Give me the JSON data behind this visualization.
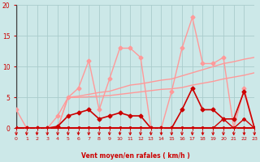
{
  "background_color": "#cce8e8",
  "grid_color": "#aacccc",
  "xlabel": "Vent moyen/en rafales ( km/h )",
  "xlim": [
    0,
    23
  ],
  "ylim": [
    0,
    20
  ],
  "xticks": [
    0,
    1,
    2,
    3,
    4,
    5,
    6,
    7,
    8,
    9,
    10,
    11,
    12,
    13,
    14,
    15,
    16,
    17,
    18,
    19,
    20,
    21,
    22,
    23
  ],
  "yticks": [
    0,
    5,
    10,
    15,
    20
  ],
  "series": [
    {
      "x": [
        0,
        1,
        2,
        3,
        4,
        5,
        6,
        7,
        8,
        9,
        10,
        11,
        12,
        13,
        14,
        15,
        16,
        17,
        18,
        19,
        20,
        21,
        22,
        23
      ],
      "y": [
        3,
        0,
        0,
        0,
        2,
        5,
        6.5,
        11,
        3,
        8,
        13,
        13,
        11.5,
        0,
        0,
        6,
        13,
        18,
        10.5,
        10.5,
        11.5,
        0,
        6.5,
        0
      ],
      "color": "#ff9999",
      "lw": 1.0,
      "marker": "D",
      "markersize": 2.5,
      "zorder": 3
    },
    {
      "x": [
        0,
        1,
        2,
        3,
        4,
        5,
        6,
        7,
        8,
        9,
        10,
        11,
        12,
        13,
        14,
        15,
        16,
        17,
        18,
        19,
        20,
        21,
        22,
        23
      ],
      "y": [
        0,
        0,
        0,
        0,
        0,
        5,
        5.2,
        5.5,
        5.8,
        6.0,
        6.5,
        7.0,
        7.2,
        7.5,
        7.8,
        8.0,
        8.5,
        9.0,
        9.5,
        10.0,
        10.5,
        10.8,
        11.2,
        11.5
      ],
      "color": "#ff9999",
      "lw": 1.0,
      "marker": null,
      "markersize": 0,
      "zorder": 2
    },
    {
      "x": [
        0,
        1,
        2,
        3,
        4,
        5,
        6,
        7,
        8,
        9,
        10,
        11,
        12,
        13,
        14,
        15,
        16,
        17,
        18,
        19,
        20,
        21,
        22,
        23
      ],
      "y": [
        0,
        0,
        0,
        0,
        0,
        5,
        5.0,
        5.1,
        5.2,
        5.3,
        5.5,
        5.7,
        5.9,
        6.1,
        6.3,
        6.4,
        6.6,
        7.0,
        7.3,
        7.6,
        8.0,
        8.3,
        8.6,
        9.0
      ],
      "color": "#ff9999",
      "lw": 1.0,
      "marker": null,
      "markersize": 0,
      "zorder": 2
    },
    {
      "x": [
        0,
        1,
        2,
        3,
        4,
        5,
        6,
        7,
        8,
        9,
        10,
        11,
        12,
        13,
        14,
        15,
        16,
        17,
        18,
        19,
        20,
        21,
        22,
        23
      ],
      "y": [
        0,
        0,
        0,
        0,
        0.3,
        2,
        2.5,
        3,
        1.5,
        2,
        2.5,
        2,
        2,
        0,
        0,
        0,
        3,
        6.5,
        3,
        3,
        1.5,
        1.5,
        6,
        0
      ],
      "color": "#cc0000",
      "lw": 1.2,
      "marker": "D",
      "markersize": 2.5,
      "zorder": 4
    },
    {
      "x": [
        0,
        1,
        2,
        3,
        4,
        5,
        6,
        7,
        8,
        9,
        10,
        11,
        12,
        13,
        14,
        15,
        16,
        17,
        18,
        19,
        20,
        21,
        22,
        23
      ],
      "y": [
        0,
        0,
        0,
        0,
        0,
        0,
        0,
        0,
        0,
        0,
        0,
        0,
        0,
        0,
        0,
        0,
        0,
        0,
        0,
        0,
        0,
        0,
        0,
        0
      ],
      "color": "#cc0000",
      "lw": 1.8,
      "marker": "D",
      "markersize": 2.0,
      "zorder": 4
    },
    {
      "x": [
        0,
        1,
        2,
        3,
        4,
        5,
        6,
        7,
        8,
        9,
        10,
        11,
        12,
        13,
        14,
        15,
        16,
        17,
        18,
        19,
        20,
        21,
        22,
        23
      ],
      "y": [
        0,
        0,
        0,
        0,
        0,
        0,
        0,
        0,
        0,
        0,
        0,
        0,
        0,
        0,
        0,
        0,
        0,
        0,
        0,
        0,
        1.5,
        0,
        1.5,
        0
      ],
      "color": "#cc0000",
      "lw": 1.0,
      "marker": "D",
      "markersize": 2.0,
      "zorder": 4
    }
  ],
  "arrow_color": "#cc0000",
  "tick_label_color": "#cc0000",
  "axis_label_color": "#cc0000"
}
